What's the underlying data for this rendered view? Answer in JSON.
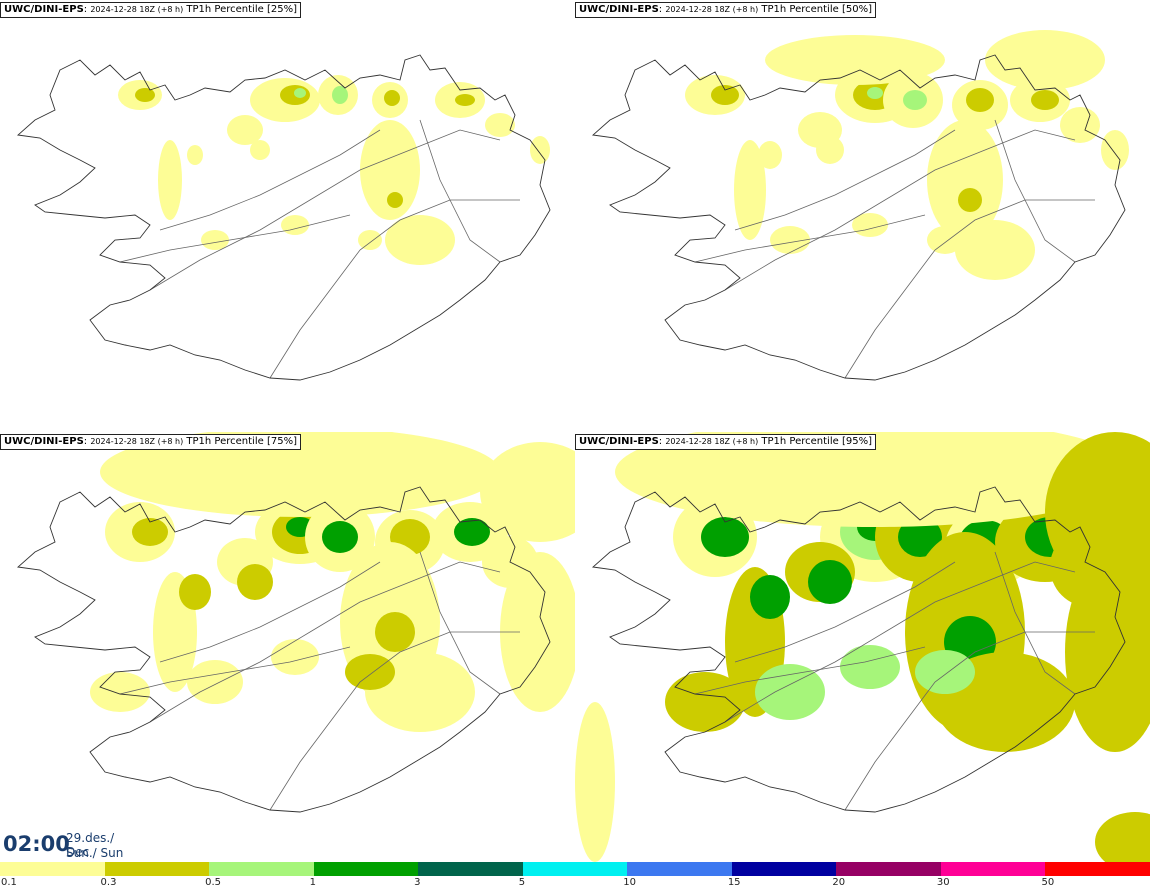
{
  "panels": [
    {
      "source": "UWC/DINI-EPS",
      "run": "2024-12-28 18Z (+8 h)",
      "field": "TP1h Percentile [25%]",
      "level": 0
    },
    {
      "source": "UWC/DINI-EPS",
      "run": "2024-12-28 18Z (+8 h)",
      "field": "TP1h Percentile [50%]",
      "level": 1
    },
    {
      "source": "UWC/DINI-EPS",
      "run": "2024-12-28 18Z (+8 h)",
      "field": "TP1h Percentile [75%]",
      "level": 2
    },
    {
      "source": "UWC/DINI-EPS",
      "run": "2024-12-28 18Z (+8 h)",
      "field": "TP1h Percentile [95%]",
      "level": 3
    }
  ],
  "valid_time": {
    "hour": "02:00",
    "date": "29.des./ Dec",
    "weekday": "Sun./ Sun"
  },
  "legend": {
    "ticks": [
      "0.1",
      "0.3",
      "0.5",
      "1",
      "3",
      "5",
      "10",
      "15",
      "20",
      "30",
      "50"
    ],
    "colors": [
      "#fdfd96",
      "#cccc00",
      "#a6f57a",
      "#00a000",
      "#00644b",
      "#00f0f0",
      "#3c78f0",
      "#0000a0",
      "#960064",
      "#ff0096",
      "#ff0000"
    ]
  },
  "map_colors": {
    "land": "#ffffff",
    "coast": "#333333"
  }
}
